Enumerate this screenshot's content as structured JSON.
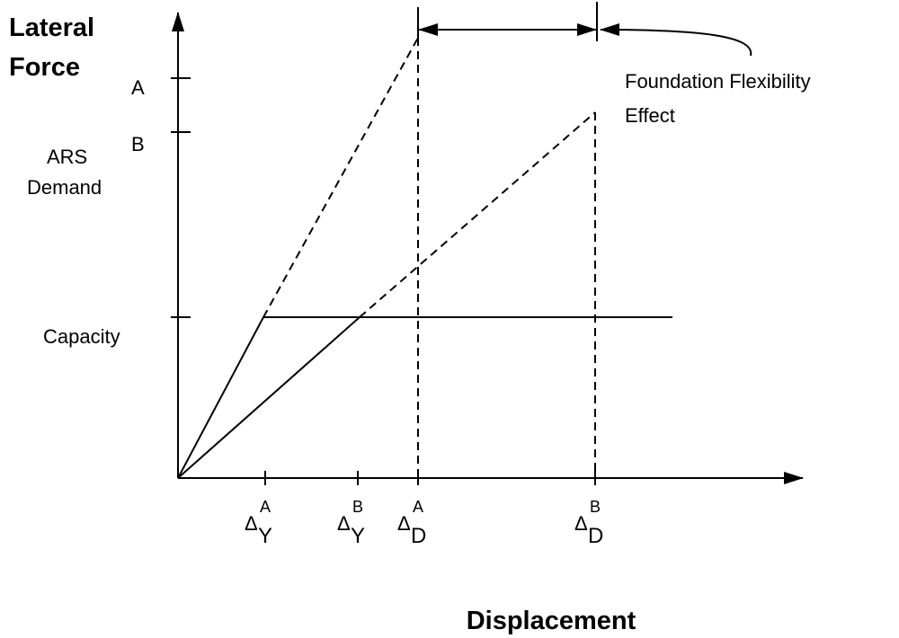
{
  "y_axis": {
    "title": [
      "Lateral",
      "Force"
    ],
    "levels": [
      "A",
      "B",
      "Capacity"
    ],
    "demand_label": [
      "ARS",
      "Demand"
    ]
  },
  "x_axis": {
    "title": "Displacement",
    "ticks": [
      {
        "symbol": "Δ",
        "sup": "A",
        "sub": "Y"
      },
      {
        "symbol": "Δ",
        "sup": "B",
        "sub": "Y"
      },
      {
        "symbol": "Δ",
        "sup": "A",
        "sub": "D"
      },
      {
        "symbol": "Δ",
        "sup": "B",
        "sub": "D"
      }
    ]
  },
  "annotation": [
    "Foundation Flexibility",
    "Effect"
  ]
}
